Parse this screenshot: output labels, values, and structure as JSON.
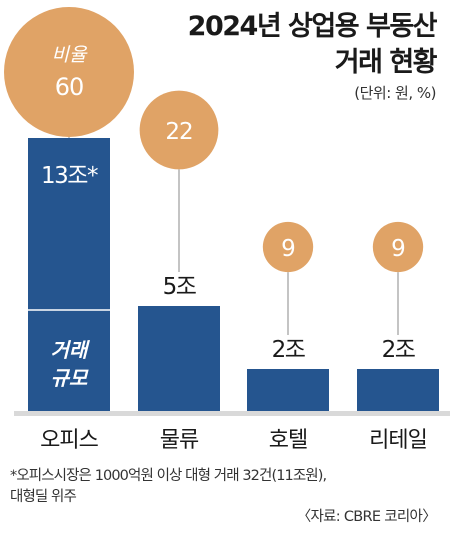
{
  "title_line1": "2024년 상업용 부동산",
  "title_line2": "거래 현황",
  "unit_label": "(단위: 원, %)",
  "ratio_legend_label": "비율",
  "volume_legend_label_line1": "거래",
  "volume_legend_label_line2": "규모",
  "footnote_line1": "*오피스시장은 1000억원 이상 대형 거래 32건(11조원),",
  "footnote_line2": "대형딜 위주",
  "source": "〈자료: CBRE 코리아〉",
  "colors": {
    "bar": "#25558f",
    "circle": "#e0a366",
    "connector": "#8a8a8a",
    "baseline": "#d9d9d9"
  },
  "chart_data": {
    "type": "bar",
    "title": "2024년 상업용 부동산 거래 현황",
    "unit": "(단위: 원, %)",
    "categories": [
      "오피스",
      "물류",
      "호텔",
      "리테일"
    ],
    "series": [
      {
        "name": "거래 규모",
        "values": [
          13,
          5,
          2,
          2
        ],
        "value_labels": [
          "13조*",
          "5조",
          "2조",
          "2조"
        ]
      },
      {
        "name": "비율",
        "values": [
          60,
          22,
          9,
          9
        ],
        "value_labels": [
          "60",
          "22",
          "9",
          "9"
        ]
      }
    ]
  }
}
